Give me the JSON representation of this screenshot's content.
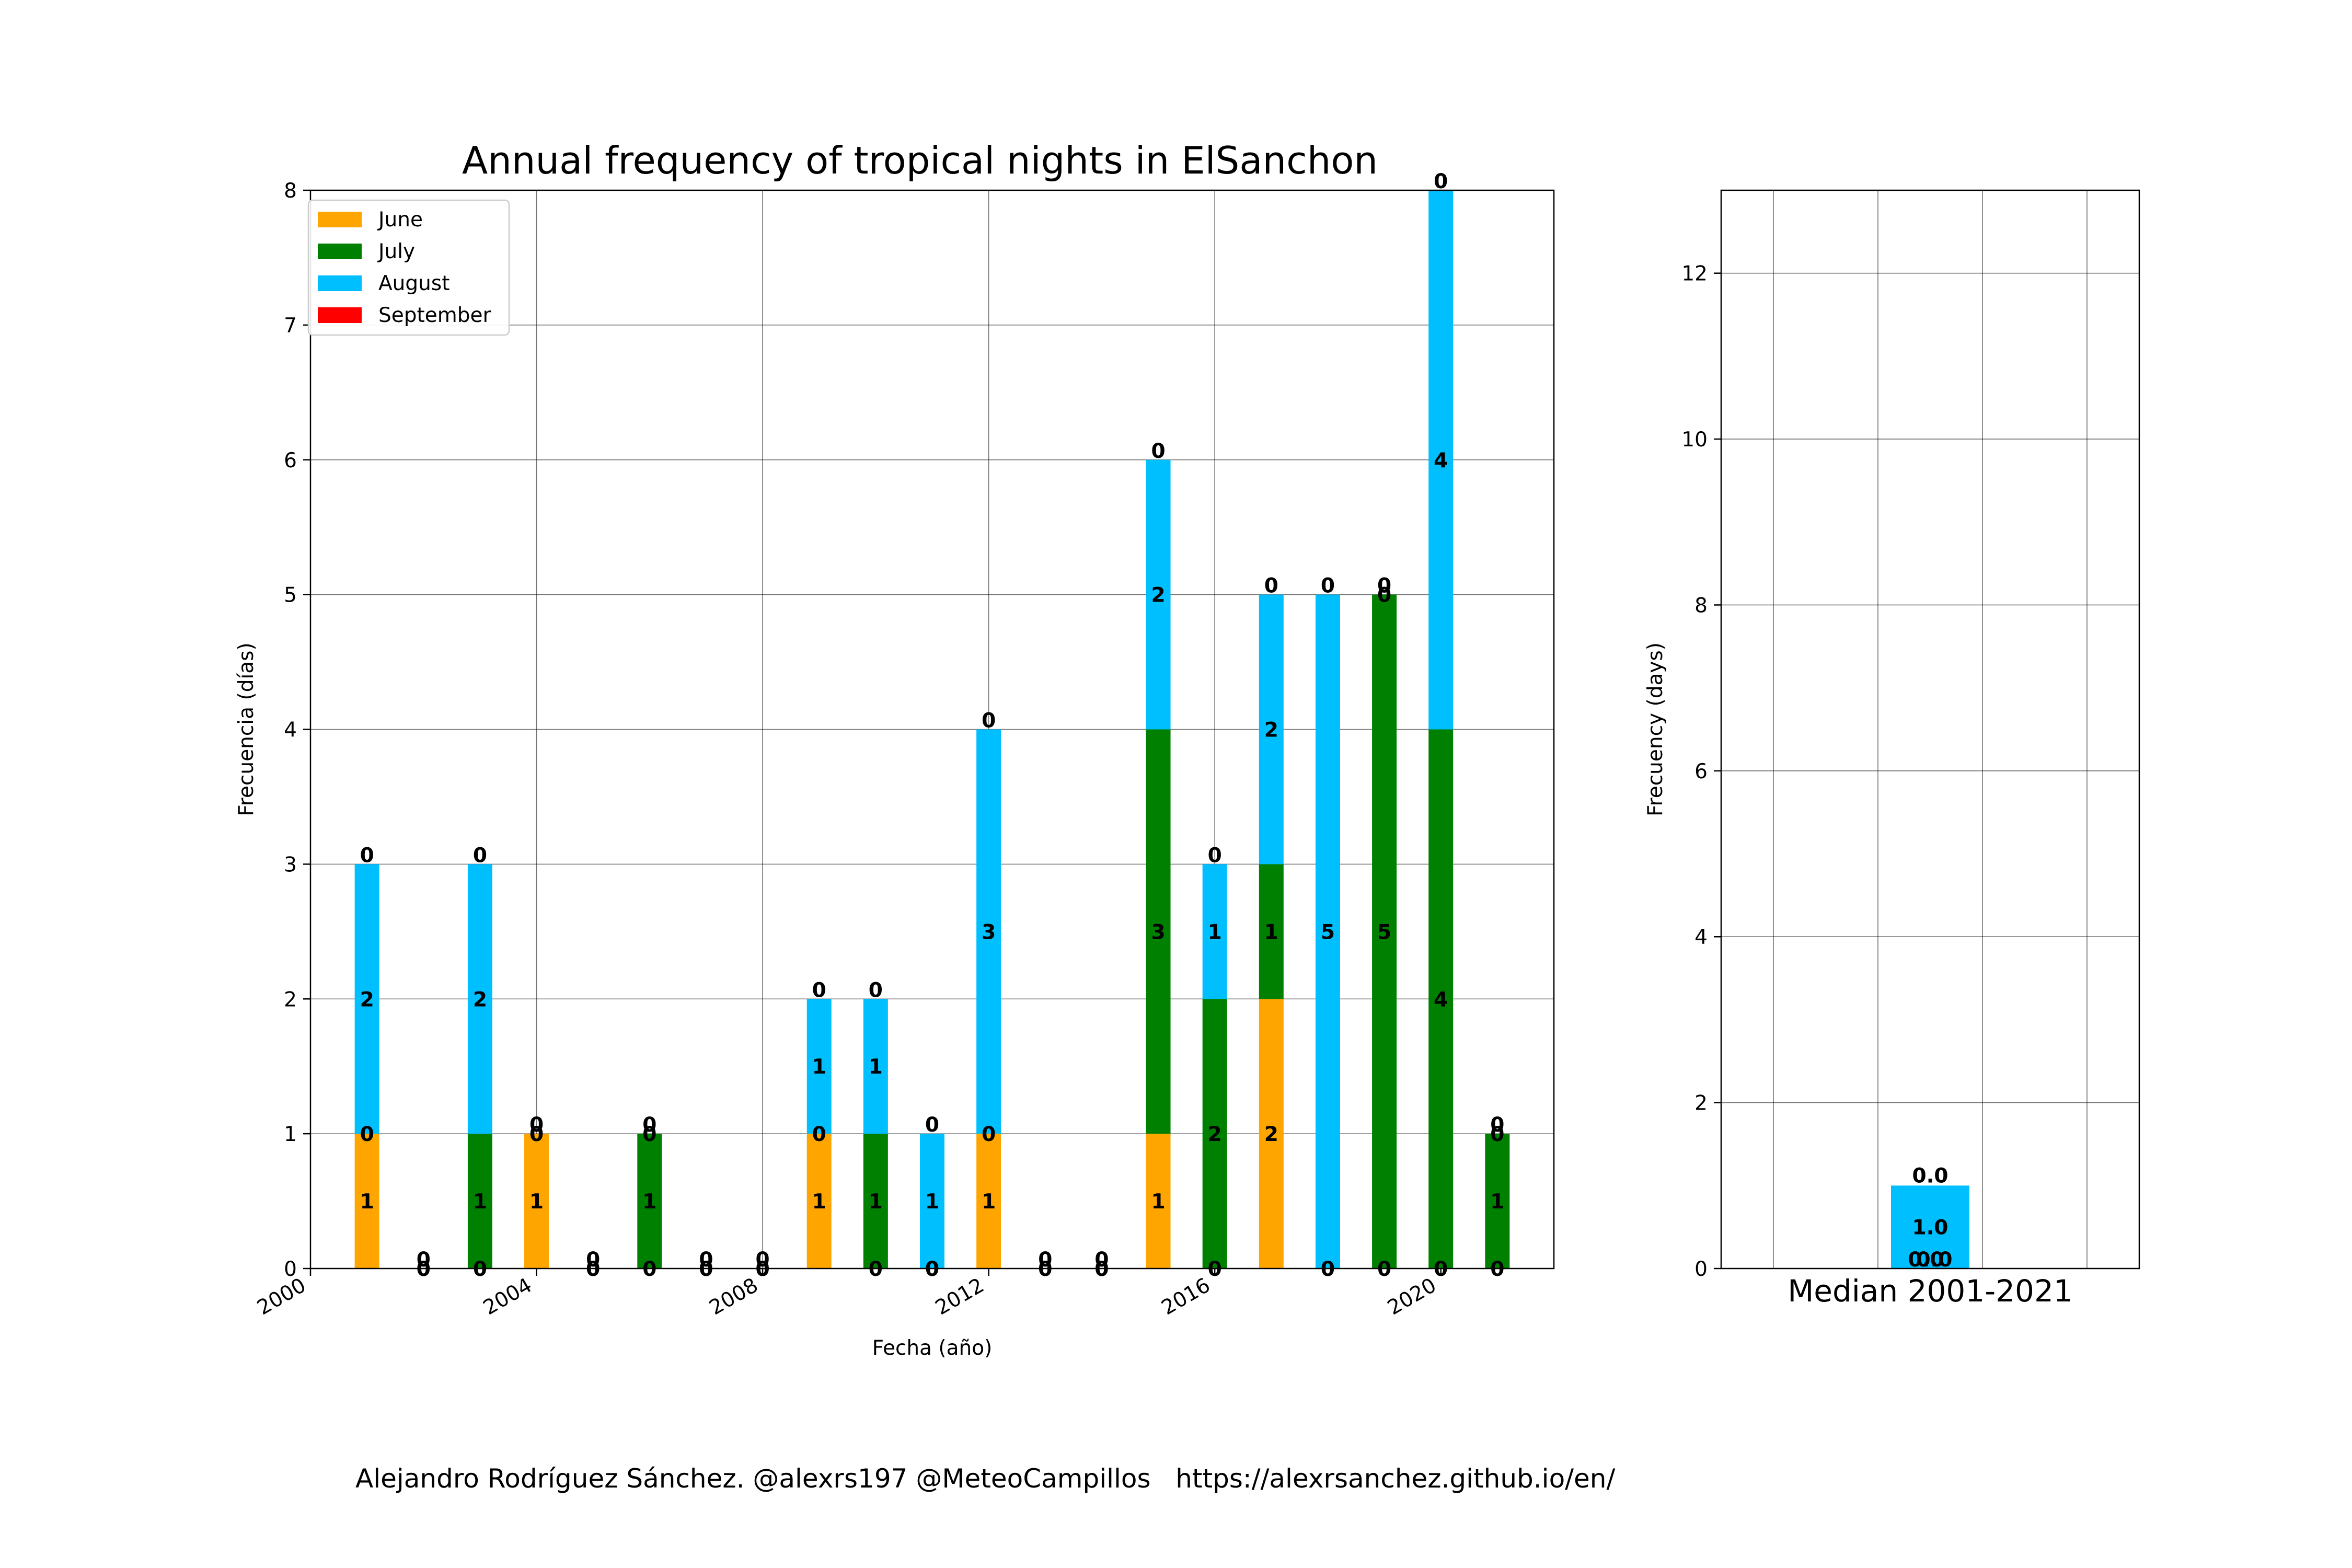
{
  "title": "Annual frequency of tropical nights in ElSanchon",
  "credits": "Alejandro Rodríguez Sánchez. @alexrs197 @MeteoCampillos   https://alexrsanchez.github.io/en/",
  "chart_data": [
    {
      "type": "bar",
      "stacked": true,
      "title": "Annual frequency of tropical nights in ElSanchon",
      "xlabel": "Fecha (año)",
      "ylabel": "Frecuencia (días)",
      "ylim": [
        0,
        8
      ],
      "xlim": [
        2000,
        2022
      ],
      "yticks": [
        "0",
        "1",
        "2",
        "3",
        "4",
        "5",
        "6",
        "7",
        "8"
      ],
      "xticks": [
        "2000",
        "2004",
        "2008",
        "2012",
        "2016",
        "2020"
      ],
      "grid": true,
      "legend_position": "top-left",
      "x": [
        2001,
        2002,
        2003,
        2004,
        2005,
        2006,
        2007,
        2008,
        2009,
        2010,
        2011,
        2012,
        2013,
        2014,
        2015,
        2016,
        2017,
        2018,
        2019,
        2020,
        2021
      ],
      "series": [
        {
          "name": "June",
          "color": "#ffa500",
          "values": [
            1,
            0,
            0,
            1,
            0,
            0,
            0,
            0,
            1,
            0,
            0,
            1,
            0,
            0,
            1,
            0,
            2,
            0,
            0,
            0,
            0
          ]
        },
        {
          "name": "July",
          "color": "#008000",
          "values": [
            0,
            0,
            1,
            0,
            0,
            1,
            0,
            0,
            0,
            1,
            0,
            0,
            0,
            0,
            3,
            2,
            1,
            0,
            5,
            4,
            1
          ]
        },
        {
          "name": "August",
          "color": "#00bfff",
          "values": [
            2,
            0,
            2,
            0,
            0,
            0,
            0,
            0,
            1,
            1,
            1,
            3,
            0,
            0,
            2,
            1,
            2,
            5,
            0,
            4,
            0
          ]
        },
        {
          "name": "September",
          "color": "#ff0000",
          "values": [
            0,
            0,
            0,
            0,
            0,
            0,
            0,
            0,
            0,
            0,
            0,
            0,
            0,
            0,
            0,
            0,
            0,
            0,
            0,
            0,
            0
          ]
        }
      ]
    },
    {
      "type": "bar",
      "stacked": true,
      "title": "Median 2001-2021",
      "xlabel": "",
      "ylabel": "Frecuency (days)",
      "ylim": [
        0,
        13
      ],
      "yticks": [
        "0",
        "2",
        "4",
        "6",
        "8",
        "10",
        "12"
      ],
      "grid": true,
      "categories": [
        "Median 2001-2021"
      ],
      "series": [
        {
          "name": "June",
          "color": "#ffa500",
          "values": [
            0.0
          ]
        },
        {
          "name": "July",
          "color": "#008000",
          "values": [
            0.0
          ]
        },
        {
          "name": "August",
          "color": "#00bfff",
          "values": [
            1.0
          ]
        },
        {
          "name": "September",
          "color": "#ff0000",
          "values": [
            0.0
          ]
        }
      ],
      "labels": [
        "0.0",
        "0.0",
        "1.0",
        "0.0"
      ]
    }
  ]
}
